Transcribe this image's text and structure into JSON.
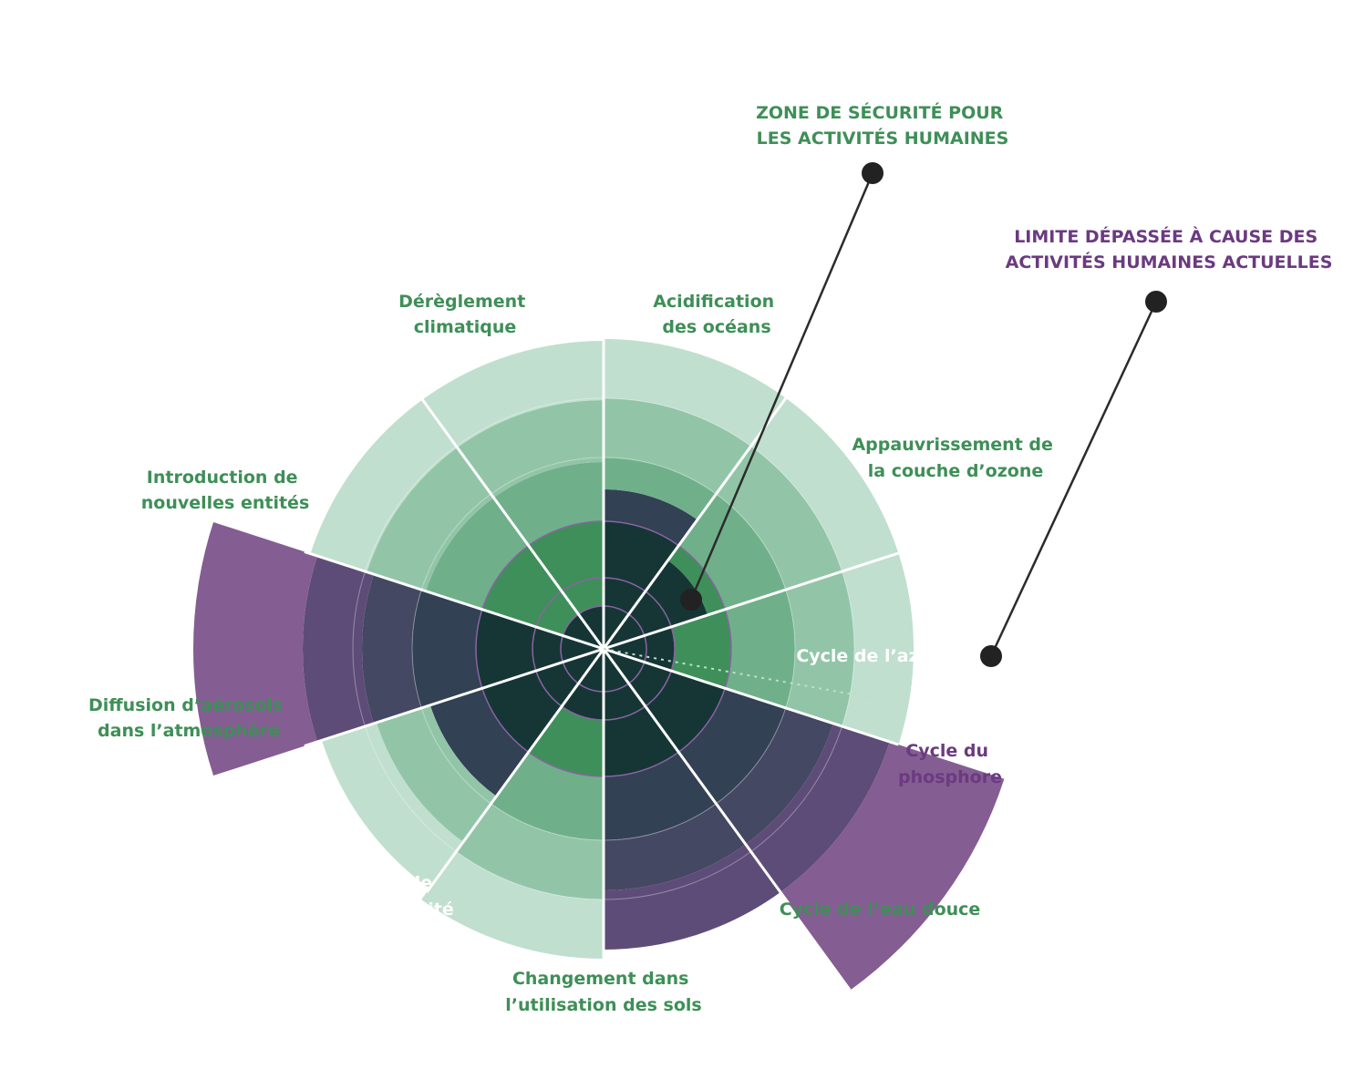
{
  "callouts": {
    "safe_zone": {
      "line1": "ZONE DE SÉCURITÉ POUR",
      "line2": "LES ACTIVITÉS HUMAINES"
    },
    "exceeded": {
      "line1": "LIMITE DÉPASSÉE À CAUSE DES",
      "line2": "ACTIVITÉS HUMAINES ACTUELLES"
    }
  },
  "sectors": [
    {
      "id": "climat",
      "line1": "Dérèglement",
      "line2": "climatique",
      "status": "exceeded"
    },
    {
      "id": "oceans",
      "line1": "Acidification",
      "line2": "des océans",
      "status": "safe"
    },
    {
      "id": "ozone",
      "line1": "Appauvrissement de",
      "line2": "la couche d’ozone",
      "status": "safe"
    },
    {
      "id": "azote",
      "line1": "Cycle de l’azote",
      "line2": "",
      "status": "exceeded"
    },
    {
      "id": "phosphore",
      "line1": "Cycle du",
      "line2": "phosphore",
      "status": "exceeded"
    },
    {
      "id": "eau",
      "line1": "Cycle de l’eau douce",
      "line2": "",
      "status": "safe"
    },
    {
      "id": "sols",
      "line1": "Changement dans",
      "line2": "l’utilisation des sols",
      "status": "exceeded"
    },
    {
      "id": "biodiversite",
      "line1": "Érosion de",
      "line2": "la biodiversité",
      "status": "exceeded"
    },
    {
      "id": "aerosols",
      "line1": "Diffusion d’aérosols",
      "line2": "dans l’atmosphère",
      "status": "safe"
    },
    {
      "id": "entites",
      "line1": "Introduction de",
      "line2": "nouvelles entités",
      "status": "safe"
    }
  ],
  "colors": {
    "ring1": "#c0dfcf",
    "ring2": "#92c5a8",
    "ring3": "#6fb08a",
    "safe": "#3f8f5a",
    "core": "#163636",
    "exceeded1": "#324154",
    "exceeded2": "#454862",
    "exceeded3": "#5e4c78",
    "exceeded4": "#845d92",
    "green_text": "#3e8f57",
    "purple_text": "#6b3a80",
    "inner_ring": "#8a64a3"
  }
}
